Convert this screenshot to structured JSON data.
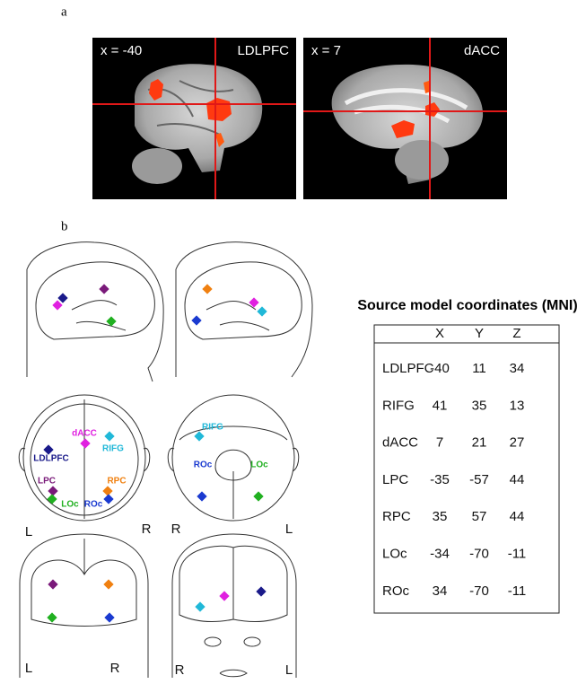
{
  "panel_a": {
    "label": "a",
    "images": [
      {
        "coord": "x = -40",
        "region": "LDLPFC"
      },
      {
        "coord": "x = 7",
        "region": "dACC"
      }
    ]
  },
  "panel_b": {
    "label": "b",
    "top_view": {
      "labels": [
        {
          "text": "dACC",
          "color": "#e020e0"
        },
        {
          "text": "RIFG",
          "color": "#20b8d8"
        },
        {
          "text": "LDLPFC",
          "color": "#1a1a8a"
        },
        {
          "text": "LPC",
          "color": "#7a1a7a"
        },
        {
          "text": "RPC",
          "color": "#f08010"
        },
        {
          "text": "LOc",
          "color": "#20b020"
        },
        {
          "text": "ROc",
          "color": "#1a3ad0"
        }
      ],
      "sides": [
        "L",
        "R"
      ]
    },
    "back_view": {
      "labels": [
        {
          "text": "RIFG",
          "color": "#20b8d8"
        },
        {
          "text": "ROc",
          "color": "#1a3ad0"
        },
        {
          "text": "LOc",
          "color": "#20b020"
        }
      ],
      "sides": [
        "R",
        "L"
      ]
    },
    "front_view": {
      "sides": [
        "L",
        "R"
      ]
    },
    "face_view": {
      "sides": [
        "R",
        "L"
      ]
    }
  },
  "table": {
    "title": "Source model coordinates (MNI)",
    "columns": [
      "X",
      "Y",
      "Z"
    ],
    "rows": [
      [
        "LDLPFC",
        -40,
        11,
        34
      ],
      [
        "RIFG",
        41,
        35,
        13
      ],
      [
        "dACC",
        7,
        21,
        27
      ],
      [
        "LPC",
        -35,
        -57,
        44
      ],
      [
        "RPC",
        35,
        57,
        44
      ],
      [
        "LOc",
        -34,
        -70,
        -11
      ],
      [
        "ROc",
        34,
        -70,
        -11
      ]
    ]
  }
}
